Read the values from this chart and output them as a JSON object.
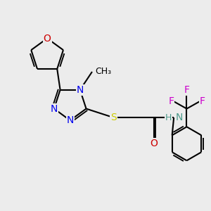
{
  "background_color": "#ececec",
  "figsize": [
    3.0,
    3.0
  ],
  "dpi": 100,
  "bond_color": "#000000",
  "lw": 1.5,
  "doff": 0.018,
  "atom_colors": {
    "O": "#cc0000",
    "N": "#0000ee",
    "S": "#cccc00",
    "F": "#cc00cc",
    "NH": "#4a9a8a",
    "C": "#000000"
  }
}
